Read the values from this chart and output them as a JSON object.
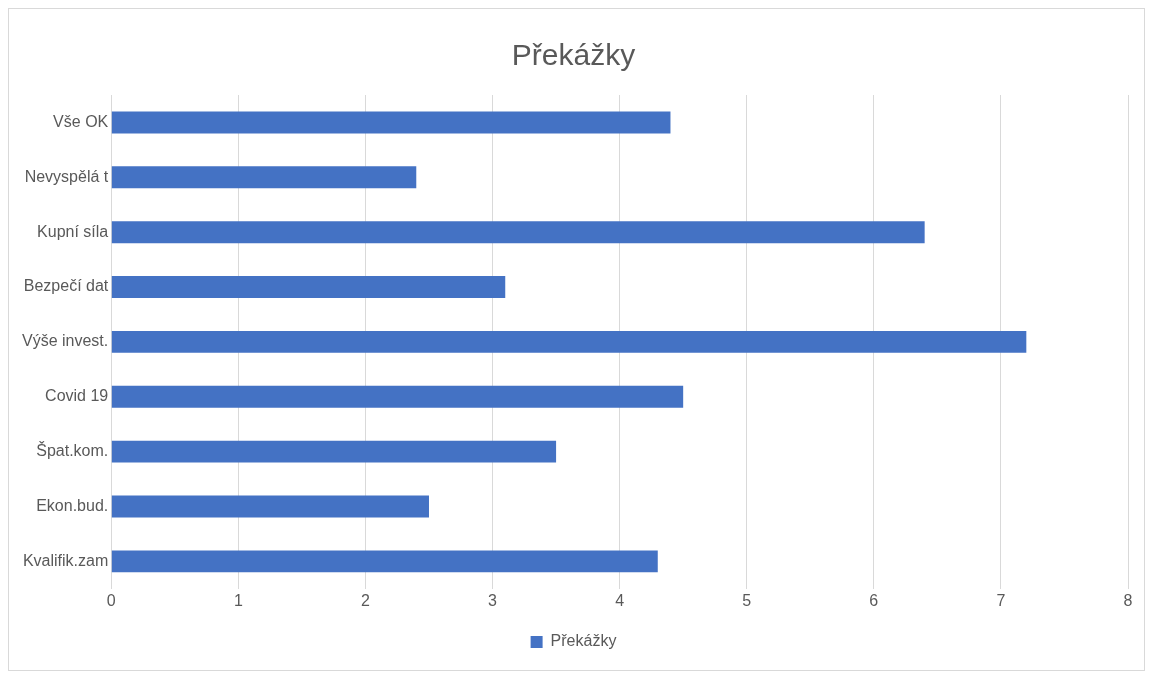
{
  "chart_data": {
    "type": "bar",
    "orientation": "horizontal",
    "title": "Překážky",
    "categories": [
      "Vše OK",
      "Nevyspělá t",
      "Kupní síla",
      "Bezpečí dat",
      "Výše invest.",
      "Covid 19",
      "Špat.kom.",
      "Ekon.bud.",
      "Kvalifik.zam"
    ],
    "series": [
      {
        "name": "Překážky",
        "color": "#4472c4",
        "values": [
          4.4,
          2.4,
          6.4,
          3.1,
          7.2,
          4.5,
          3.5,
          2.5,
          4.3
        ]
      }
    ],
    "xlim": [
      0,
      8
    ],
    "xticks": [
      0,
      1,
      2,
      3,
      4,
      5,
      6,
      7,
      8
    ],
    "grid": "x",
    "legend": "bottom"
  }
}
